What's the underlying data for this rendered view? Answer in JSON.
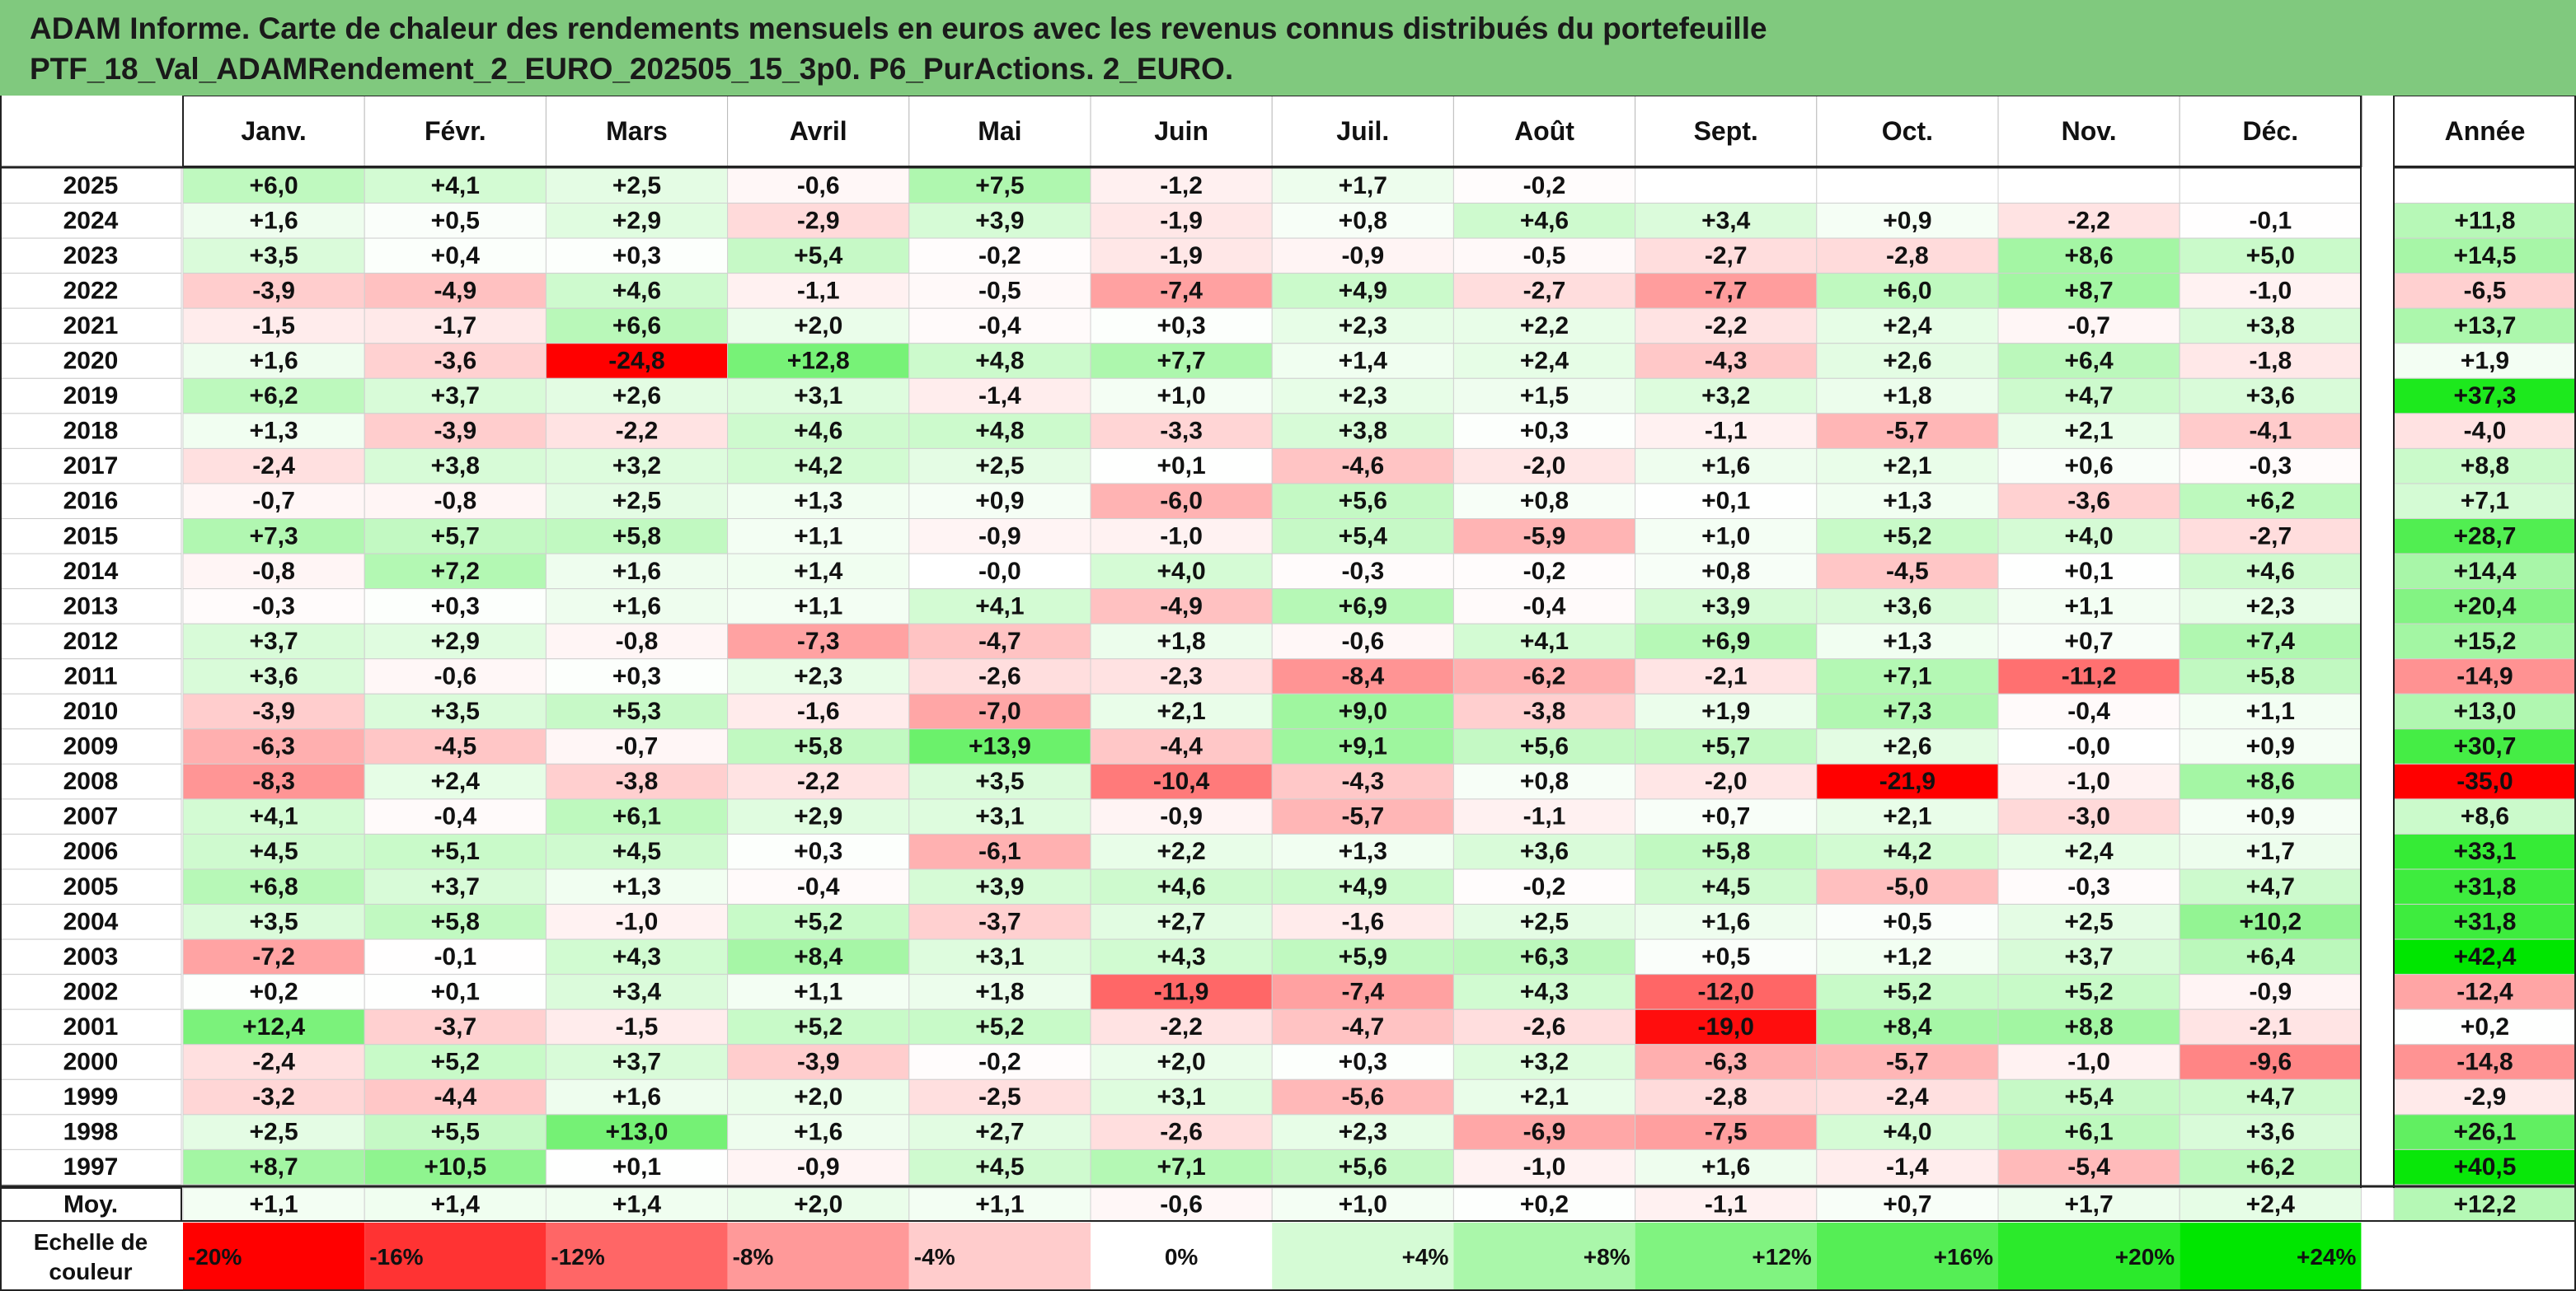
{
  "title_line1": "ADAM Informe. Carte de chaleur des rendements mensuels en euros avec les revenus connus distribués du portefeuille",
  "title_line2": "PTF_18_Val_ADAMRendement_2_EURO_202505_15_3p0. P6_PurActions. 2_EURO.",
  "colors": {
    "title_bg": "#80c97e",
    "negative_max": "#ff0000",
    "positive_max": "#00e600",
    "neutral": "#ffffff"
  },
  "chart_data": {
    "type": "heatmap",
    "title": "ADAM Informe. Carte de chaleur des rendements mensuels en euros avec les revenus connus distribués du portefeuille PTF_18_Val_ADAMRendement_2_EURO_202505_15_3p0. P6_PurActions. 2_EURO.",
    "columns": [
      "Janv.",
      "Févr.",
      "Mars",
      "Avril",
      "Mai",
      "Juin",
      "Juil.",
      "Août",
      "Sept.",
      "Oct.",
      "Nov.",
      "Déc."
    ],
    "annual_column": "Année",
    "rows": [
      {
        "year": "2025",
        "values": [
          6.0,
          4.1,
          2.5,
          -0.6,
          7.5,
          -1.2,
          1.7,
          -0.2,
          null,
          null,
          null,
          null
        ],
        "annual": null
      },
      {
        "year": "2024",
        "values": [
          1.6,
          0.5,
          2.9,
          -2.9,
          3.9,
          -1.9,
          0.8,
          4.6,
          3.4,
          0.9,
          -2.2,
          -0.1
        ],
        "annual": 11.8
      },
      {
        "year": "2023",
        "values": [
          3.5,
          0.4,
          0.3,
          5.4,
          -0.2,
          -1.9,
          -0.9,
          -0.5,
          -2.7,
          -2.8,
          8.6,
          5.0
        ],
        "annual": 14.5
      },
      {
        "year": "2022",
        "values": [
          -3.9,
          -4.9,
          4.6,
          -1.1,
          -0.5,
          -7.4,
          4.9,
          -2.7,
          -7.7,
          6.0,
          8.7,
          -1.0
        ],
        "annual": -6.5
      },
      {
        "year": "2021",
        "values": [
          -1.5,
          -1.7,
          6.6,
          2.0,
          -0.4,
          0.3,
          2.3,
          2.2,
          -2.2,
          2.4,
          -0.7,
          3.8
        ],
        "annual": 13.7
      },
      {
        "year": "2020",
        "values": [
          1.6,
          -3.6,
          -24.8,
          12.8,
          4.8,
          7.7,
          1.4,
          2.4,
          -4.3,
          2.6,
          6.4,
          -1.8
        ],
        "annual": 1.9
      },
      {
        "year": "2019",
        "values": [
          6.2,
          3.7,
          2.6,
          3.1,
          -1.4,
          1.0,
          2.3,
          1.5,
          3.2,
          1.8,
          4.7,
          3.6
        ],
        "annual": 37.3
      },
      {
        "year": "2018",
        "values": [
          1.3,
          -3.9,
          -2.2,
          4.6,
          4.8,
          -3.3,
          3.8,
          0.3,
          -1.1,
          -5.7,
          2.1,
          -4.1
        ],
        "annual": -4.0
      },
      {
        "year": "2017",
        "values": [
          -2.4,
          3.8,
          3.2,
          4.2,
          2.5,
          0.1,
          -4.6,
          -2.0,
          1.6,
          2.1,
          0.6,
          -0.3
        ],
        "annual": 8.8
      },
      {
        "year": "2016",
        "values": [
          -0.7,
          -0.8,
          2.5,
          1.3,
          0.9,
          -6.0,
          5.6,
          0.8,
          0.1,
          1.3,
          -3.6,
          6.2
        ],
        "annual": 7.1
      },
      {
        "year": "2015",
        "values": [
          7.3,
          5.7,
          5.8,
          1.1,
          -0.9,
          -1.0,
          5.4,
          -5.9,
          1.0,
          5.2,
          4.0,
          -2.7
        ],
        "annual": 28.7
      },
      {
        "year": "2014",
        "values": [
          -0.8,
          7.2,
          1.6,
          1.4,
          -0.0,
          4.0,
          -0.3,
          -0.2,
          0.8,
          -4.5,
          0.1,
          4.6
        ],
        "annual": 14.4
      },
      {
        "year": "2013",
        "values": [
          -0.3,
          0.3,
          1.6,
          1.1,
          4.1,
          -4.9,
          6.9,
          -0.4,
          3.9,
          3.6,
          1.1,
          2.3
        ],
        "annual": 20.4
      },
      {
        "year": "2012",
        "values": [
          3.7,
          2.9,
          -0.8,
          -7.3,
          -4.7,
          1.8,
          -0.6,
          4.1,
          6.9,
          1.3,
          0.7,
          7.4
        ],
        "annual": 15.2
      },
      {
        "year": "2011",
        "values": [
          3.6,
          -0.6,
          0.3,
          2.3,
          -2.6,
          -2.3,
          -8.4,
          -6.2,
          -2.1,
          7.1,
          -11.2,
          5.8
        ],
        "annual": -14.9
      },
      {
        "year": "2010",
        "values": [
          -3.9,
          3.5,
          5.3,
          -1.6,
          -7.0,
          2.1,
          9.0,
          -3.8,
          1.9,
          7.3,
          -0.4,
          1.1
        ],
        "annual": 13.0
      },
      {
        "year": "2009",
        "values": [
          -6.3,
          -4.5,
          -0.7,
          5.8,
          13.9,
          -4.4,
          9.1,
          5.6,
          5.7,
          2.6,
          -0.0,
          0.9
        ],
        "annual": 30.7
      },
      {
        "year": "2008",
        "values": [
          -8.3,
          2.4,
          -3.8,
          -2.2,
          3.5,
          -10.4,
          -4.3,
          0.8,
          -2.0,
          -21.9,
          -1.0,
          8.6
        ],
        "annual": -35.0
      },
      {
        "year": "2007",
        "values": [
          4.1,
          -0.4,
          6.1,
          2.9,
          3.1,
          -0.9,
          -5.7,
          -1.1,
          0.7,
          2.1,
          -3.0,
          0.9
        ],
        "annual": 8.6
      },
      {
        "year": "2006",
        "values": [
          4.5,
          5.1,
          4.5,
          0.3,
          -6.1,
          2.2,
          1.3,
          3.6,
          5.8,
          4.2,
          2.4,
          1.7
        ],
        "annual": 33.1
      },
      {
        "year": "2005",
        "values": [
          6.8,
          3.7,
          1.3,
          -0.4,
          3.9,
          4.6,
          4.9,
          -0.2,
          4.5,
          -5.0,
          -0.3,
          4.7
        ],
        "annual": 31.8
      },
      {
        "year": "2004",
        "values": [
          3.5,
          5.8,
          -1.0,
          5.2,
          -3.7,
          2.7,
          -1.6,
          2.5,
          1.6,
          0.5,
          2.5,
          10.2
        ],
        "annual": 31.8
      },
      {
        "year": "2003",
        "values": [
          -7.2,
          -0.1,
          4.3,
          8.4,
          3.1,
          4.3,
          5.9,
          6.3,
          0.5,
          1.2,
          3.7,
          6.4
        ],
        "annual": 42.4
      },
      {
        "year": "2002",
        "values": [
          0.2,
          0.1,
          3.4,
          1.1,
          1.8,
          -11.9,
          -7.4,
          4.3,
          -12.0,
          5.2,
          5.2,
          -0.9
        ],
        "annual": -12.4
      },
      {
        "year": "2001",
        "values": [
          12.4,
          -3.7,
          -1.5,
          5.2,
          5.2,
          -2.2,
          -4.7,
          -2.6,
          -19.0,
          8.4,
          8.8,
          -2.1
        ],
        "annual": 0.2
      },
      {
        "year": "2000",
        "values": [
          -2.4,
          5.2,
          3.7,
          -3.9,
          -0.2,
          2.0,
          0.3,
          3.2,
          -6.3,
          -5.7,
          -1.0,
          -9.6
        ],
        "annual": -14.8
      },
      {
        "year": "1999",
        "values": [
          -3.2,
          -4.4,
          1.6,
          2.0,
          -2.5,
          3.1,
          -5.6,
          2.1,
          -2.8,
          -2.4,
          5.4,
          4.7
        ],
        "annual": -2.9
      },
      {
        "year": "1998",
        "values": [
          2.5,
          5.5,
          13.0,
          1.6,
          2.7,
          -2.6,
          2.3,
          -6.9,
          -7.5,
          4.0,
          6.1,
          3.6
        ],
        "annual": 26.1
      },
      {
        "year": "1997",
        "values": [
          8.7,
          10.5,
          0.1,
          -0.9,
          4.5,
          7.1,
          5.6,
          -1.0,
          1.6,
          -1.4,
          -5.4,
          6.2
        ],
        "annual": 40.5
      }
    ],
    "average_row": {
      "label": "Moy.",
      "values": [
        1.1,
        1.4,
        1.4,
        2.0,
        1.1,
        -0.6,
        1.0,
        0.2,
        -1.1,
        0.7,
        1.7,
        2.4
      ],
      "annual": 12.2
    },
    "legend": {
      "label_line1": "Echelle de",
      "label_line2": "couleur",
      "stops": [
        {
          "label": "-20%",
          "value": -20
        },
        {
          "label": "-16%",
          "value": -16
        },
        {
          "label": "-12%",
          "value": -12
        },
        {
          "label": "-8%",
          "value": -8
        },
        {
          "label": "-4%",
          "value": -4
        },
        {
          "label": "0%",
          "value": 0
        },
        {
          "label": "+4%",
          "value": 4
        },
        {
          "label": "+8%",
          "value": 8
        },
        {
          "label": "+12%",
          "value": 12
        },
        {
          "label": "+16%",
          "value": 16
        },
        {
          "label": "+20%",
          "value": 20
        },
        {
          "label": "+24%",
          "value": 24
        }
      ]
    },
    "color_scale": {
      "min": -20,
      "max": 24,
      "annual_min": -35,
      "annual_max": 42
    }
  }
}
